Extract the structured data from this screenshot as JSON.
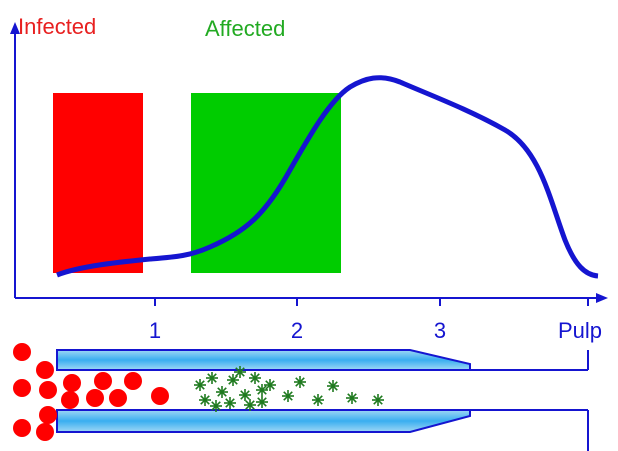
{
  "labels": {
    "infected": "Infected",
    "affected": "Affected"
  },
  "axis": {
    "ticks": [
      "1",
      "2",
      "3",
      "Pulp"
    ]
  }
}
